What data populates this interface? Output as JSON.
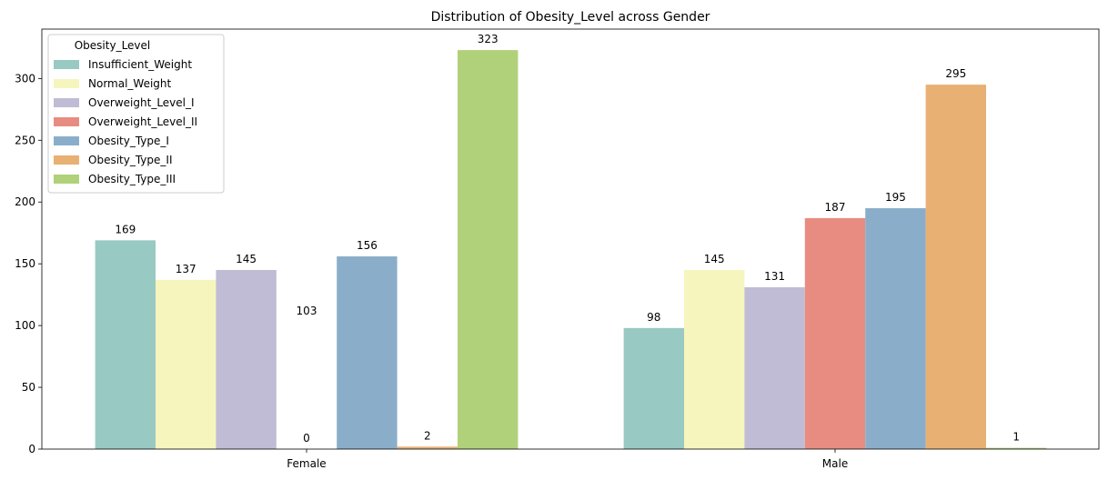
{
  "chart_data": {
    "type": "bar",
    "title": "Distribution of Obesity_Level across Gender",
    "xlabel": "",
    "ylabel": "",
    "categories": [
      "Female",
      "Male"
    ],
    "ylim": [
      0,
      340
    ],
    "yticks": [
      0,
      50,
      100,
      150,
      200,
      250,
      300
    ],
    "grid": false,
    "legend": {
      "title": "Obesity_Level",
      "placement": "top-left"
    },
    "series": [
      {
        "name": "Insufficient_Weight",
        "color": "#98c9c2",
        "values": [
          169,
          98
        ]
      },
      {
        "name": "Normal_Weight",
        "color": "#f6f5bd",
        "values": [
          137,
          145
        ]
      },
      {
        "name": "Overweight_Level_I",
        "color": "#c1bcd5",
        "values": [
          145,
          131
        ]
      },
      {
        "name": "Overweight_Level_II",
        "color": "#e88c82",
        "values": [
          0,
          187
        ]
      },
      {
        "name": "Obesity_Type_I",
        "color": "#8aaec9",
        "values": [
          156,
          195
        ]
      },
      {
        "name": "Obesity_Type_II",
        "color": "#e8b073",
        "values": [
          2,
          295
        ]
      },
      {
        "name": "Obesity_Type_III",
        "color": "#b0d17a",
        "values": [
          323,
          1
        ]
      }
    ],
    "annotations": [
      {
        "category": "Female",
        "text": "103",
        "value": 103
      }
    ]
  }
}
